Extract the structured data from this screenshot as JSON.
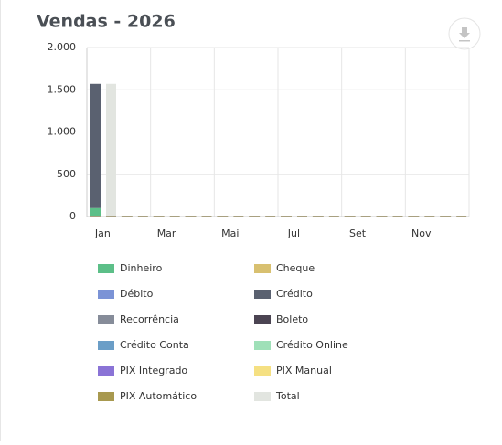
{
  "chart_data": {
    "type": "bar",
    "title": "Vendas - 2026",
    "categories": [
      "Jan",
      null,
      "Mar",
      null,
      "Mai",
      null,
      "Jul",
      null,
      "Set",
      null,
      "Nov",
      null
    ],
    "ylim": [
      0,
      2000
    ],
    "yticks": [
      {
        "value": 0,
        "label": "0"
      },
      {
        "value": 500,
        "label": "500"
      },
      {
        "value": 1000,
        "label": "1.000"
      },
      {
        "value": 1500,
        "label": "1.500"
      },
      {
        "value": 2000,
        "label": "2.000"
      }
    ],
    "stacked": true,
    "series": [
      {
        "name": "Dinheiro",
        "color": "#5cbf88",
        "stack": 0,
        "values": [
          100,
          0,
          0,
          0,
          0,
          0,
          0,
          0,
          0,
          0,
          0,
          0
        ]
      },
      {
        "name": "Cheque",
        "color": "#d8c070",
        "stack": 0,
        "values": [
          0,
          0,
          0,
          0,
          0,
          0,
          0,
          0,
          0,
          0,
          0,
          0
        ]
      },
      {
        "name": "Débito",
        "color": "#7b93d6",
        "stack": 0,
        "values": [
          0,
          0,
          0,
          0,
          0,
          0,
          0,
          0,
          0,
          0,
          0,
          0
        ]
      },
      {
        "name": "Crédito",
        "color": "#5a6170",
        "stack": 0,
        "values": [
          1470,
          0,
          0,
          0,
          0,
          0,
          0,
          0,
          0,
          0,
          0,
          0
        ]
      },
      {
        "name": "Recorrência",
        "color": "#868c99",
        "stack": 0,
        "values": [
          0,
          0,
          0,
          0,
          0,
          0,
          0,
          0,
          0,
          0,
          0,
          0
        ]
      },
      {
        "name": "Boleto",
        "color": "#4b4452",
        "stack": 0,
        "values": [
          0,
          0,
          0,
          0,
          0,
          0,
          0,
          0,
          0,
          0,
          0,
          0
        ]
      },
      {
        "name": "Crédito Conta",
        "color": "#6b9ec7",
        "stack": 0,
        "values": [
          0,
          0,
          0,
          0,
          0,
          0,
          0,
          0,
          0,
          0,
          0,
          0
        ]
      },
      {
        "name": "Crédito Online",
        "color": "#9fe0b8",
        "stack": 0,
        "values": [
          0,
          0,
          0,
          0,
          0,
          0,
          0,
          0,
          0,
          0,
          0,
          0
        ]
      },
      {
        "name": "PIX Integrado",
        "color": "#8a73d6",
        "stack": 0,
        "values": [
          0,
          0,
          0,
          0,
          0,
          0,
          0,
          0,
          0,
          0,
          0,
          0
        ]
      },
      {
        "name": "PIX Manual",
        "color": "#f5e082",
        "stack": 0,
        "values": [
          0,
          0,
          0,
          0,
          0,
          0,
          0,
          0,
          0,
          0,
          0,
          0
        ]
      },
      {
        "name": "PIX Automático",
        "color": "#a8994f",
        "stack": 0,
        "values": [
          0,
          0,
          0,
          0,
          0,
          0,
          0,
          0,
          0,
          0,
          0,
          0
        ]
      },
      {
        "name": "Total",
        "color": "#e2e5e0",
        "stack": 1,
        "values": [
          1570,
          0,
          0,
          0,
          0,
          0,
          0,
          0,
          0,
          0,
          0,
          0
        ]
      }
    ]
  }
}
